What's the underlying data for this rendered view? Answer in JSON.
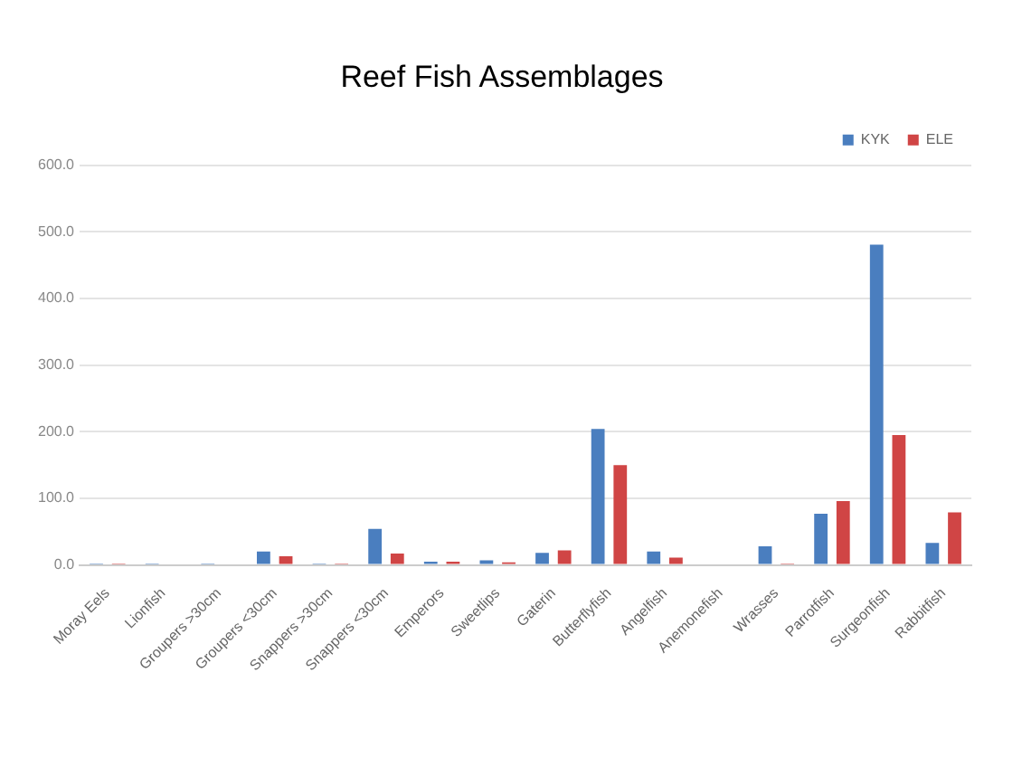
{
  "chart_data": {
    "type": "bar",
    "title": "Reef Fish Assemblages",
    "categories": [
      "Moray Eels",
      "Lionfish",
      "Groupers >30cm",
      "Groupers <30cm",
      "Snappers >30cm",
      "Snappers <30cm",
      "Emperors",
      "Sweetlips",
      "Gaterin",
      "Butterflyfish",
      "Angelfish",
      "Anemonefish",
      "Wrasses",
      "Parrotfish",
      "Surgeonfish",
      "Rabbitfish"
    ],
    "series": [
      {
        "name": "KYK",
        "color": "#4a7ebf",
        "values": [
          2,
          2,
          2,
          20,
          2,
          54,
          5,
          7,
          18,
          204,
          20,
          0,
          28,
          77,
          481,
          33
        ]
      },
      {
        "name": "ELE",
        "color": "#d04545",
        "values": [
          2,
          0,
          0,
          13,
          2,
          17,
          5,
          4,
          22,
          150,
          11,
          0,
          2,
          96,
          195,
          79
        ]
      }
    ],
    "ylim": [
      0,
      600
    ],
    "yticks": [
      {
        "value": 0,
        "label": "0.0"
      },
      {
        "value": 100,
        "label": "100.0"
      },
      {
        "value": 200,
        "label": "200.0"
      },
      {
        "value": 300,
        "label": "300.0"
      },
      {
        "value": 400,
        "label": "400.0"
      },
      {
        "value": 500,
        "label": "500.0"
      },
      {
        "value": 600,
        "label": "600.0"
      }
    ],
    "grid": "y",
    "legend": "top right"
  }
}
